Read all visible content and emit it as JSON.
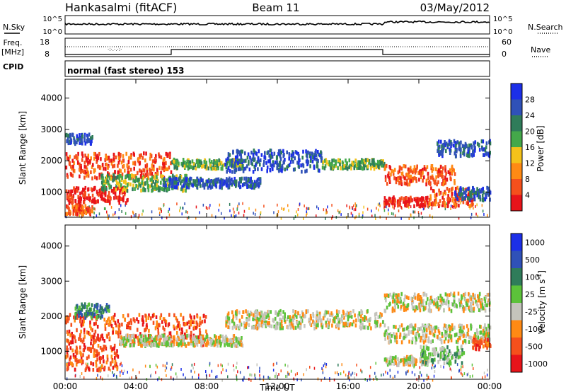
{
  "header": {
    "station": "Hankasalmi (fitACF)",
    "beam": "Beam 11",
    "date": "03/May/2012"
  },
  "noise_panel": {
    "left_label": "N.Sky",
    "right_label": "N.Search",
    "left_ticks": [
      "10^5",
      "10^0"
    ],
    "right_ticks": [
      "10^5",
      "10^0"
    ]
  },
  "freq_panel": {
    "left_label_line1": "Freq.",
    "left_label_line2": "[MHz]",
    "left_ticks": [
      "18",
      "8"
    ],
    "right_label": "Nave",
    "right_ticks": [
      "60",
      "0"
    ]
  },
  "cpid": {
    "label": "CPID",
    "value": "normal (fast stereo) 153"
  },
  "chart_data": [
    {
      "type": "heatmap",
      "name": "power",
      "ylabel": "Slant Range [km]",
      "xlabel": "",
      "x_ticks": [
        "00:00",
        "04:00",
        "08:00",
        "12:00",
        "16:00",
        "20:00",
        "00:00"
      ],
      "x_range_hours": [
        0,
        24
      ],
      "y_ticks": [
        1000,
        2000,
        3000,
        4000
      ],
      "ylim": [
        200,
        4600
      ],
      "colorbar": {
        "label": "Power [dB]",
        "ticks": [
          "4",
          "8",
          "12",
          "16",
          "20",
          "24",
          "28"
        ],
        "colors": [
          "#1c2fe8",
          "#2f51b8",
          "#2f7c5a",
          "#44a84a",
          "#f4c21a",
          "#ff8a14",
          "#f5501c",
          "#e8141a"
        ]
      },
      "echo_bands": [
        {
          "t0": 0.0,
          "t1": 6.0,
          "range_km": [
            1500,
            2300
          ],
          "level": 6
        },
        {
          "t0": 0.0,
          "t1": 3.5,
          "range_km": [
            700,
            1200
          ],
          "level": 7
        },
        {
          "t0": 0.0,
          "t1": 1.5,
          "range_km": [
            350,
            650
          ],
          "level": 6
        },
        {
          "t0": 2.0,
          "t1": 7.0,
          "range_km": [
            1100,
            1600
          ],
          "level": 3
        },
        {
          "t0": 5.5,
          "t1": 11.0,
          "range_km": [
            1200,
            1500
          ],
          "level": 1
        },
        {
          "t0": 6.0,
          "t1": 10.0,
          "range_km": [
            1800,
            2100
          ],
          "level": 3
        },
        {
          "t0": 9.0,
          "t1": 14.5,
          "range_km": [
            1700,
            2400
          ],
          "level": 1
        },
        {
          "t0": 14.5,
          "t1": 18.0,
          "range_km": [
            1800,
            2100
          ],
          "level": 3
        },
        {
          "t0": 18.0,
          "t1": 22.0,
          "range_km": [
            1300,
            1900
          ],
          "level": 6
        },
        {
          "t0": 18.0,
          "t1": 20.5,
          "range_km": [
            600,
            900
          ],
          "level": 7
        },
        {
          "t0": 20.5,
          "t1": 23.0,
          "range_km": [
            600,
            1200
          ],
          "level": 6
        },
        {
          "t0": 21.0,
          "t1": 24.0,
          "range_km": [
            2200,
            2700
          ],
          "level": 1
        },
        {
          "t0": 22.0,
          "t1": 24.0,
          "range_km": [
            800,
            1200
          ],
          "level": 1
        },
        {
          "t0": 0.0,
          "t1": 1.5,
          "range_km": [
            2600,
            2900
          ],
          "level": 1
        }
      ]
    },
    {
      "type": "heatmap",
      "name": "velocity",
      "ylabel": "Slant Range [km]",
      "xlabel": "Time UT",
      "x_ticks": [
        "00:00",
        "04:00",
        "08:00",
        "12:00",
        "16:00",
        "20:00",
        "00:00"
      ],
      "x_range_hours": [
        0,
        24
      ],
      "y_ticks": [
        1000,
        2000,
        3000,
        4000
      ],
      "ylim": [
        200,
        4600
      ],
      "colorbar": {
        "label": "Velocity [m s",
        "label_exponent": "-1",
        "label_close": "]",
        "ticks": [
          "1000",
          "500",
          "100",
          "25",
          "-25",
          "-100",
          "-500",
          "-1000"
        ],
        "colors": [
          "#1c2fe8",
          "#2f51b8",
          "#2f7c5a",
          "#5cc23a",
          "#c4c4bc",
          "#ff8a14",
          "#f5501c",
          "#e8141a"
        ]
      },
      "echo_bands": [
        {
          "t0": 0.0,
          "t1": 8.0,
          "range_km": [
            1200,
            2100
          ],
          "level": 6
        },
        {
          "t0": 0.0,
          "t1": 3.0,
          "range_km": [
            500,
            1200
          ],
          "level": 6
        },
        {
          "t0": 0.5,
          "t1": 2.5,
          "range_km": [
            2000,
            2400
          ],
          "level": 2
        },
        {
          "t0": 3.0,
          "t1": 10.0,
          "range_km": [
            1200,
            1500
          ],
          "level": 4
        },
        {
          "t0": 9.0,
          "t1": 18.0,
          "range_km": [
            1700,
            2200
          ],
          "level": 4
        },
        {
          "t0": 18.0,
          "t1": 24.0,
          "range_km": [
            1300,
            1800
          ],
          "level": 4
        },
        {
          "t0": 18.0,
          "t1": 24.0,
          "range_km": [
            2200,
            2700
          ],
          "level": 4
        },
        {
          "t0": 18.0,
          "t1": 20.5,
          "range_km": [
            650,
            900
          ],
          "level": 4
        },
        {
          "t0": 20.0,
          "t1": 22.5,
          "range_km": [
            700,
            1200
          ],
          "level": 3
        },
        {
          "t0": 23.0,
          "t1": 24.0,
          "range_km": [
            1100,
            1400
          ],
          "level": 6
        }
      ]
    }
  ]
}
